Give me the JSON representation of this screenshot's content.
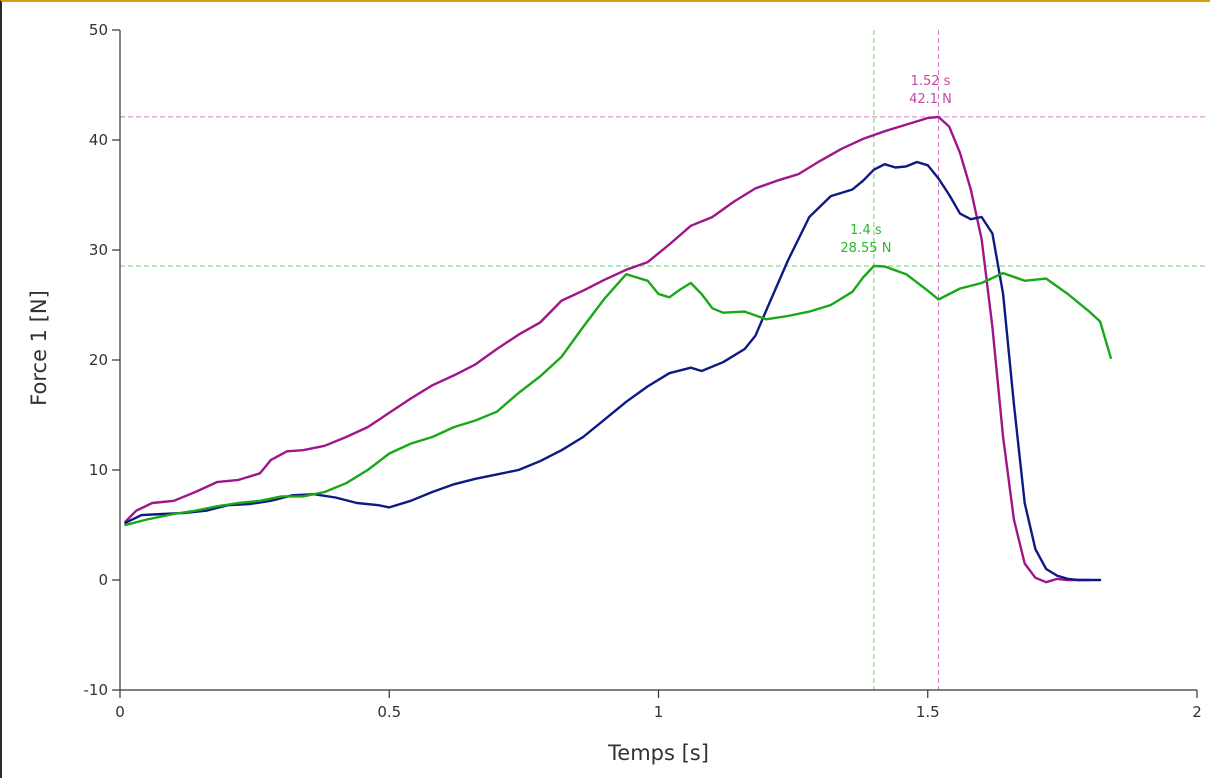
{
  "chart_data": {
    "type": "line",
    "xlabel": "Temps [s]",
    "ylabel": "Force 1 [N]",
    "xlim": [
      0,
      2
    ],
    "ylim": [
      -10,
      50
    ],
    "x_ticks": [
      0,
      0.5,
      1,
      1.5,
      2
    ],
    "x_tick_labels": [
      "0",
      "0.5",
      "1",
      "1.5",
      "2"
    ],
    "y_ticks": [
      -10,
      0,
      10,
      20,
      30,
      40,
      50
    ],
    "y_tick_labels": [
      "-10",
      "0",
      "10",
      "20",
      "30",
      "40",
      "50"
    ],
    "grid": false,
    "series": [
      {
        "color": "#a0158a",
        "points": [
          [
            0.01,
            5.3
          ],
          [
            0.03,
            6.3
          ],
          [
            0.06,
            7.0
          ],
          [
            0.1,
            7.2
          ],
          [
            0.14,
            8.0
          ],
          [
            0.18,
            8.9
          ],
          [
            0.22,
            9.1
          ],
          [
            0.26,
            9.7
          ],
          [
            0.28,
            10.9
          ],
          [
            0.31,
            11.7
          ],
          [
            0.34,
            11.8
          ],
          [
            0.38,
            12.2
          ],
          [
            0.42,
            13.0
          ],
          [
            0.46,
            13.9
          ],
          [
            0.5,
            15.2
          ],
          [
            0.54,
            16.5
          ],
          [
            0.58,
            17.7
          ],
          [
            0.62,
            18.6
          ],
          [
            0.66,
            19.6
          ],
          [
            0.7,
            21.0
          ],
          [
            0.74,
            22.3
          ],
          [
            0.78,
            23.4
          ],
          [
            0.82,
            25.4
          ],
          [
            0.86,
            26.3
          ],
          [
            0.9,
            27.3
          ],
          [
            0.94,
            28.2
          ],
          [
            0.98,
            28.9
          ],
          [
            1.02,
            30.5
          ],
          [
            1.06,
            32.2
          ],
          [
            1.1,
            33.0
          ],
          [
            1.14,
            34.4
          ],
          [
            1.18,
            35.6
          ],
          [
            1.22,
            36.3
          ],
          [
            1.26,
            36.9
          ],
          [
            1.3,
            38.1
          ],
          [
            1.34,
            39.2
          ],
          [
            1.38,
            40.1
          ],
          [
            1.42,
            40.8
          ],
          [
            1.46,
            41.4
          ],
          [
            1.5,
            42.0
          ],
          [
            1.52,
            42.1
          ],
          [
            1.54,
            41.2
          ],
          [
            1.56,
            38.8
          ],
          [
            1.58,
            35.5
          ],
          [
            1.6,
            31.0
          ],
          [
            1.62,
            23.0
          ],
          [
            1.64,
            13.0
          ],
          [
            1.66,
            5.5
          ],
          [
            1.68,
            1.5
          ],
          [
            1.7,
            0.2
          ],
          [
            1.72,
            -0.2
          ],
          [
            1.74,
            0.1
          ],
          [
            1.76,
            0.0
          ],
          [
            1.8,
            0.0
          ]
        ]
      },
      {
        "color": "#0d1a82",
        "points": [
          [
            0.01,
            5.2
          ],
          [
            0.04,
            5.9
          ],
          [
            0.08,
            6.0
          ],
          [
            0.12,
            6.1
          ],
          [
            0.16,
            6.3
          ],
          [
            0.2,
            6.8
          ],
          [
            0.24,
            6.9
          ],
          [
            0.28,
            7.2
          ],
          [
            0.32,
            7.7
          ],
          [
            0.36,
            7.8
          ],
          [
            0.4,
            7.5
          ],
          [
            0.44,
            7.0
          ],
          [
            0.48,
            6.8
          ],
          [
            0.5,
            6.6
          ],
          [
            0.54,
            7.2
          ],
          [
            0.58,
            8.0
          ],
          [
            0.62,
            8.7
          ],
          [
            0.66,
            9.2
          ],
          [
            0.7,
            9.6
          ],
          [
            0.74,
            10.0
          ],
          [
            0.78,
            10.8
          ],
          [
            0.82,
            11.8
          ],
          [
            0.86,
            13.0
          ],
          [
            0.9,
            14.6
          ],
          [
            0.94,
            16.2
          ],
          [
            0.98,
            17.6
          ],
          [
            1.02,
            18.8
          ],
          [
            1.06,
            19.3
          ],
          [
            1.08,
            19.0
          ],
          [
            1.12,
            19.8
          ],
          [
            1.16,
            21.0
          ],
          [
            1.18,
            22.2
          ],
          [
            1.2,
            24.5
          ],
          [
            1.24,
            29.0
          ],
          [
            1.28,
            33.0
          ],
          [
            1.32,
            34.9
          ],
          [
            1.36,
            35.5
          ],
          [
            1.38,
            36.3
          ],
          [
            1.4,
            37.3
          ],
          [
            1.42,
            37.8
          ],
          [
            1.44,
            37.5
          ],
          [
            1.46,
            37.6
          ],
          [
            1.48,
            38.0
          ],
          [
            1.5,
            37.7
          ],
          [
            1.52,
            36.5
          ],
          [
            1.54,
            35.0
          ],
          [
            1.56,
            33.3
          ],
          [
            1.58,
            32.8
          ],
          [
            1.6,
            33.0
          ],
          [
            1.62,
            31.5
          ],
          [
            1.64,
            26.0
          ],
          [
            1.66,
            16.0
          ],
          [
            1.68,
            7.0
          ],
          [
            1.7,
            2.8
          ],
          [
            1.72,
            1.0
          ],
          [
            1.74,
            0.4
          ],
          [
            1.76,
            0.1
          ],
          [
            1.78,
            0.0
          ],
          [
            1.82,
            0.0
          ]
        ]
      },
      {
        "color": "#18a818",
        "points": [
          [
            0.01,
            5.0
          ],
          [
            0.05,
            5.5
          ],
          [
            0.1,
            6.0
          ],
          [
            0.14,
            6.3
          ],
          [
            0.18,
            6.7
          ],
          [
            0.22,
            7.0
          ],
          [
            0.26,
            7.2
          ],
          [
            0.3,
            7.6
          ],
          [
            0.34,
            7.6
          ],
          [
            0.38,
            8.0
          ],
          [
            0.42,
            8.8
          ],
          [
            0.46,
            10.0
          ],
          [
            0.5,
            11.5
          ],
          [
            0.54,
            12.4
          ],
          [
            0.58,
            13.0
          ],
          [
            0.62,
            13.9
          ],
          [
            0.66,
            14.5
          ],
          [
            0.7,
            15.3
          ],
          [
            0.74,
            17.0
          ],
          [
            0.78,
            18.5
          ],
          [
            0.82,
            20.3
          ],
          [
            0.86,
            23.0
          ],
          [
            0.9,
            25.6
          ],
          [
            0.94,
            27.8
          ],
          [
            0.98,
            27.2
          ],
          [
            1.0,
            26.0
          ],
          [
            1.02,
            25.7
          ],
          [
            1.04,
            26.4
          ],
          [
            1.06,
            27.0
          ],
          [
            1.08,
            26.0
          ],
          [
            1.1,
            24.7
          ],
          [
            1.12,
            24.3
          ],
          [
            1.16,
            24.4
          ],
          [
            1.2,
            23.7
          ],
          [
            1.24,
            24.0
          ],
          [
            1.28,
            24.4
          ],
          [
            1.32,
            25.0
          ],
          [
            1.36,
            26.2
          ],
          [
            1.38,
            27.5
          ],
          [
            1.4,
            28.55
          ],
          [
            1.42,
            28.5
          ],
          [
            1.46,
            27.8
          ],
          [
            1.5,
            26.3
          ],
          [
            1.52,
            25.5
          ],
          [
            1.56,
            26.5
          ],
          [
            1.6,
            27.0
          ],
          [
            1.64,
            27.9
          ],
          [
            1.68,
            27.2
          ],
          [
            1.72,
            27.4
          ],
          [
            1.76,
            26.0
          ],
          [
            1.8,
            24.4
          ],
          [
            1.82,
            23.5
          ],
          [
            1.84,
            20.2
          ]
        ]
      }
    ],
    "annotations": [
      {
        "x": 1.52,
        "y": 42.1,
        "color": "#c44aa8",
        "line_color": "#d27ec4",
        "label_x": "1.52 s",
        "label_y": "42.1 N"
      },
      {
        "x": 1.4,
        "y": 28.55,
        "color": "#2db82d",
        "line_color": "#6fd06f",
        "label_x": "1.4 s",
        "label_y": "28.55 N"
      }
    ]
  }
}
